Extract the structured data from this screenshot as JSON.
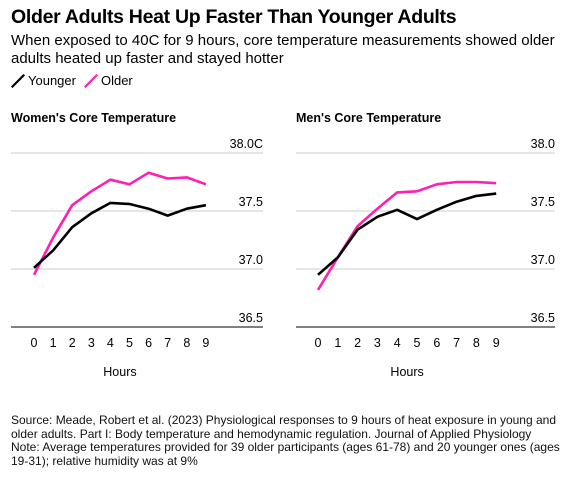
{
  "title": "Older Adults Heat Up Faster Than Younger Adults",
  "subtitle": "When exposed to 40C for 9 hours, core temperature measurements showed older adults heated up faster and stayed hotter",
  "legend": [
    {
      "label": "Younger",
      "color": "#000000"
    },
    {
      "label": "Older",
      "color": "#ff1fb0"
    }
  ],
  "source": "Source: Meade, Robert et al. (2023) Physiological responses to 9 hours of heat exposure in young and older adults. Part I: Body temperature and hemodynamic regulation. Journal of Applied Physiology",
  "note": "Note: Average temperatures provided for 39 older participants (ages 61-78) and 20 younger ones (ages 19-31); relative humidity was at 9%",
  "chart_data": [
    {
      "type": "line",
      "title": "Women's Core Temperature",
      "xlabel": "Hours",
      "ylabel": "",
      "x": [
        0,
        1,
        2,
        3,
        4,
        5,
        6,
        7,
        8,
        9
      ],
      "xticks": [
        "0",
        "1",
        "2",
        "3",
        "4",
        "5",
        "6",
        "7",
        "8",
        "9"
      ],
      "ylim": [
        36.5,
        38.0
      ],
      "yticks": [
        {
          "value": 38.0,
          "label": "38.0C"
        },
        {
          "value": 37.5,
          "label": "37.5"
        },
        {
          "value": 37.0,
          "label": "37.0"
        },
        {
          "value": 36.5,
          "label": "36.5"
        }
      ],
      "series": [
        {
          "name": "Younger",
          "color": "#000000",
          "values": [
            37.01,
            37.16,
            37.36,
            37.48,
            37.57,
            37.56,
            37.52,
            37.46,
            37.52,
            37.55
          ]
        },
        {
          "name": "Older",
          "color": "#ff1fb0",
          "values": [
            36.95,
            37.27,
            37.55,
            37.67,
            37.77,
            37.73,
            37.83,
            37.78,
            37.79,
            37.73
          ]
        }
      ]
    },
    {
      "type": "line",
      "title": "Men's Core Temperature",
      "xlabel": "Hours",
      "ylabel": "",
      "x": [
        0,
        1,
        2,
        3,
        4,
        5,
        6,
        7,
        8,
        9
      ],
      "xticks": [
        "0",
        "1",
        "2",
        "3",
        "4",
        "5",
        "6",
        "7",
        "8",
        "9"
      ],
      "ylim": [
        36.5,
        38.0
      ],
      "yticks": [
        {
          "value": 38.0,
          "label": "38.0"
        },
        {
          "value": 37.5,
          "label": "37.5"
        },
        {
          "value": 37.0,
          "label": "37.0"
        },
        {
          "value": 36.5,
          "label": "36.5"
        }
      ],
      "series": [
        {
          "name": "Younger",
          "color": "#000000",
          "values": [
            36.95,
            37.1,
            37.34,
            37.45,
            37.51,
            37.43,
            37.51,
            37.58,
            37.63,
            37.65
          ]
        },
        {
          "name": "Older",
          "color": "#ff1fb0",
          "values": [
            36.82,
            37.1,
            37.37,
            37.52,
            37.66,
            37.67,
            37.73,
            37.75,
            37.75,
            37.74
          ]
        }
      ]
    }
  ]
}
